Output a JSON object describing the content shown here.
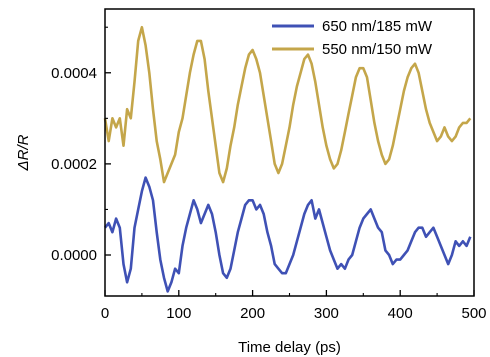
{
  "chart_data": {
    "type": "line",
    "xlabel": "Time delay (ps)",
    "ylabel": "ΔR/R",
    "xlim": [
      0,
      500
    ],
    "ylim": [
      -9e-05,
      0.00054
    ],
    "grid": false,
    "legend_position": "top-right",
    "x_ticks": [
      0,
      100,
      200,
      300,
      400,
      500
    ],
    "x_tick_labels": [
      "0",
      "100",
      "200",
      "300",
      "400",
      "500"
    ],
    "y_ticks": [
      0.0,
      0.0002,
      0.0004
    ],
    "y_tick_labels": [
      "0.0000",
      "0.0002",
      "0.0004"
    ],
    "series": [
      {
        "name": "650 nm/185 mW",
        "color": "#3f51b5",
        "x": [
          0,
          5,
          10,
          15,
          20,
          25,
          30,
          35,
          40,
          45,
          50,
          55,
          60,
          65,
          70,
          75,
          80,
          85,
          90,
          95,
          100,
          105,
          110,
          115,
          120,
          125,
          130,
          135,
          140,
          145,
          150,
          155,
          160,
          165,
          170,
          175,
          180,
          185,
          190,
          195,
          200,
          205,
          210,
          215,
          220,
          225,
          230,
          235,
          240,
          245,
          250,
          255,
          260,
          265,
          270,
          275,
          280,
          285,
          290,
          295,
          300,
          305,
          310,
          315,
          320,
          325,
          330,
          335,
          340,
          345,
          350,
          355,
          360,
          365,
          370,
          375,
          380,
          385,
          390,
          395,
          400,
          405,
          410,
          415,
          420,
          425,
          430,
          435,
          440,
          445,
          450,
          455,
          460,
          465,
          470,
          475,
          480,
          485,
          490,
          495
        ],
        "y": [
          6e-05,
          7e-05,
          5e-05,
          8e-05,
          6e-05,
          -2e-05,
          -6e-05,
          -3e-05,
          6e-05,
          0.0001,
          0.00014,
          0.00017,
          0.00015,
          0.00012,
          5e-05,
          -1e-05,
          -5e-05,
          -8e-05,
          -6e-05,
          -3e-05,
          -4e-05,
          2e-05,
          6e-05,
          9e-05,
          0.00012,
          0.0001,
          7e-05,
          9e-05,
          0.00011,
          9e-05,
          5e-05,
          0.0,
          -4e-05,
          -5e-05,
          -3e-05,
          1e-05,
          5e-05,
          8e-05,
          0.00011,
          0.00012,
          0.00012,
          0.0001,
          0.00011,
          9e-05,
          5e-05,
          2e-05,
          -2e-05,
          -3e-05,
          -4e-05,
          -4e-05,
          -2e-05,
          0.0,
          3e-05,
          6e-05,
          9e-05,
          0.00011,
          0.00012,
          8e-05,
          0.0001,
          7e-05,
          4e-05,
          1e-05,
          -1e-05,
          -3e-05,
          -2e-05,
          -3e-05,
          -1e-05,
          0.0,
          3e-05,
          6e-05,
          8e-05,
          9e-05,
          0.0001,
          8e-05,
          6e-05,
          5e-05,
          1e-05,
          0.0,
          -2e-05,
          -1e-05,
          -1e-05,
          0.0,
          1e-05,
          3e-05,
          5e-05,
          6e-05,
          6e-05,
          4e-05,
          5e-05,
          6e-05,
          4e-05,
          2e-05,
          0.0,
          -2e-05,
          0.0,
          3e-05,
          2e-05,
          3e-05,
          2e-05,
          4e-05
        ]
      },
      {
        "name": "550 nm/150 mW",
        "color": "#c4a64a",
        "x": [
          0,
          5,
          10,
          15,
          20,
          25,
          30,
          35,
          40,
          45,
          50,
          55,
          60,
          65,
          70,
          75,
          80,
          85,
          90,
          95,
          100,
          105,
          110,
          115,
          120,
          125,
          130,
          135,
          140,
          145,
          150,
          155,
          160,
          165,
          170,
          175,
          180,
          185,
          190,
          195,
          200,
          205,
          210,
          215,
          220,
          225,
          230,
          235,
          240,
          245,
          250,
          255,
          260,
          265,
          270,
          275,
          280,
          285,
          290,
          295,
          300,
          305,
          310,
          315,
          320,
          325,
          330,
          335,
          340,
          345,
          350,
          355,
          360,
          365,
          370,
          375,
          380,
          385,
          390,
          395,
          400,
          405,
          410,
          415,
          420,
          425,
          430,
          435,
          440,
          445,
          450,
          455,
          460,
          465,
          470,
          475,
          480,
          485,
          490,
          495
        ],
        "y": [
          0.0003,
          0.00025,
          0.0003,
          0.00028,
          0.0003,
          0.00024,
          0.00032,
          0.0003,
          0.00038,
          0.00047,
          0.0005,
          0.00046,
          0.0004,
          0.00032,
          0.00025,
          0.00021,
          0.00016,
          0.00018,
          0.0002,
          0.00022,
          0.00027,
          0.0003,
          0.00035,
          0.0004,
          0.00044,
          0.00047,
          0.00047,
          0.00043,
          0.00036,
          0.0003,
          0.00024,
          0.00018,
          0.00016,
          0.00019,
          0.00024,
          0.00028,
          0.00033,
          0.00037,
          0.00041,
          0.00044,
          0.00045,
          0.00043,
          0.0004,
          0.00035,
          0.0003,
          0.00025,
          0.0002,
          0.00018,
          0.0002,
          0.00024,
          0.00028,
          0.00033,
          0.00037,
          0.0004,
          0.00043,
          0.00044,
          0.00042,
          0.00038,
          0.00033,
          0.00028,
          0.00024,
          0.00021,
          0.00019,
          0.0002,
          0.00023,
          0.00027,
          0.00031,
          0.00035,
          0.00039,
          0.00041,
          0.00041,
          0.00039,
          0.00034,
          0.00029,
          0.00025,
          0.00022,
          0.0002,
          0.00021,
          0.00024,
          0.00028,
          0.00032,
          0.00036,
          0.00039,
          0.00041,
          0.00042,
          0.0004,
          0.00036,
          0.00032,
          0.00029,
          0.00027,
          0.00025,
          0.00026,
          0.00028,
          0.00026,
          0.00025,
          0.00026,
          0.00028,
          0.00029,
          0.00029,
          0.0003
        ]
      }
    ]
  }
}
